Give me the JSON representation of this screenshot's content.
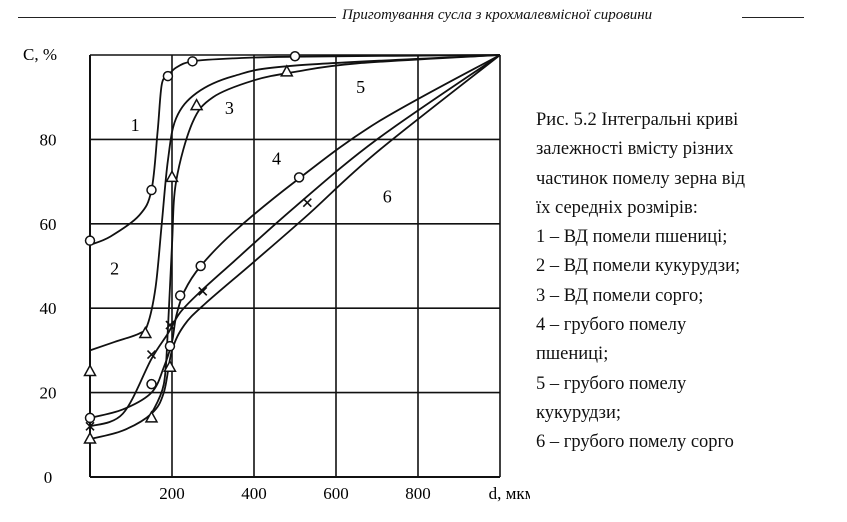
{
  "header": {
    "title": "Приготування сусла з крохмалевмісної сировини"
  },
  "caption": {
    "lines": [
      "Рис. 5.2 Інтегральні криві",
      "залежності вмісту різних",
      "частинок помелу зерна від",
      "їх середніх розмірів:",
      "1 – ВД помели пшениці;",
      "2 – ВД помели кукурудзи;",
      "3 – ВД помели сорго;",
      "4 – грубого помелу",
      "пшениці;",
      "5 – грубого помелу",
      "кукурудзи;",
      "6 – грубого помелу сорго"
    ]
  },
  "chart_data": {
    "type": "line",
    "ylabel": "С, %",
    "xlabel": "d, мкм",
    "xlim": [
      0,
      1000
    ],
    "ylim": [
      0,
      100
    ],
    "x_ticks": [
      200,
      400,
      600,
      800
    ],
    "y_ticks": [
      0,
      20,
      40,
      60,
      80
    ],
    "grid": true,
    "series": [
      {
        "name": "1",
        "marker": "circle",
        "x": [
          0,
          50,
          120,
          150,
          165,
          175,
          190,
          210,
          250,
          350,
          500,
          1000
        ],
        "y": [
          55,
          57,
          62,
          68,
          82,
          93,
          95,
          97,
          98.5,
          99.2,
          99.6,
          100
        ],
        "points_x": [
          0,
          150,
          190,
          250,
          500
        ],
        "points_y": [
          56,
          68,
          95,
          98.5,
          99.7
        ]
      },
      {
        "name": "2",
        "marker": "triangle",
        "x": [
          0,
          60,
          120,
          140,
          160,
          175,
          190,
          210,
          260,
          350,
          500,
          1000
        ],
        "y": [
          30,
          32,
          34,
          36,
          45,
          60,
          75,
          85,
          91,
          95,
          97.5,
          100
        ],
        "points_x": [
          0,
          135
        ],
        "points_y": [
          25,
          34
        ]
      },
      {
        "name": "3",
        "marker": "triangle",
        "x": [
          150,
          180,
          190,
          200,
          210,
          250,
          300,
          400,
          500,
          650,
          1000
        ],
        "y": [
          15,
          22,
          35,
          55,
          70,
          84,
          90,
          94,
          96,
          98,
          100
        ],
        "points_x": [
          0,
          150,
          195,
          200,
          260,
          480
        ],
        "points_y": [
          9,
          14,
          26,
          71,
          88,
          96
        ]
      },
      {
        "name": "4",
        "marker": "circle",
        "x": [
          0,
          80,
          150,
          180,
          200,
          210,
          230,
          270,
          350,
          500,
          700,
          1000
        ],
        "y": [
          14,
          16,
          20,
          26,
          32,
          38,
          44,
          50,
          58,
          70,
          84,
          100
        ],
        "points_x": [
          0,
          150,
          195,
          220,
          270,
          510
        ],
        "points_y": [
          14,
          22,
          31,
          43,
          50,
          71
        ]
      },
      {
        "name": "5",
        "marker": "cross",
        "x": [
          0,
          80,
          150,
          190,
          220,
          270,
          350,
          500,
          700,
          1000
        ],
        "y": [
          12,
          15,
          28,
          34,
          39,
          44,
          51,
          64,
          80,
          100
        ],
        "points_x": [
          0,
          150,
          195,
          275,
          530
        ],
        "points_y": [
          12,
          29,
          36,
          44,
          65
        ]
      },
      {
        "name": "6",
        "marker": "triangle",
        "x": [
          0,
          80,
          150,
          180,
          200,
          230,
          280,
          400,
          530,
          700,
          1000
        ],
        "y": [
          9,
          11,
          15,
          20,
          30,
          36,
          41,
          51,
          62,
          77,
          100
        ],
        "points_x": [],
        "points_y": []
      }
    ],
    "curve_labels": [
      {
        "name": "1",
        "x": 110,
        "y": 82
      },
      {
        "name": "2",
        "x": 60,
        "y": 48
      },
      {
        "name": "3",
        "x": 340,
        "y": 86
      },
      {
        "name": "4",
        "x": 455,
        "y": 74
      },
      {
        "name": "5",
        "x": 660,
        "y": 91
      },
      {
        "name": "6",
        "x": 725,
        "y": 65
      }
    ]
  }
}
